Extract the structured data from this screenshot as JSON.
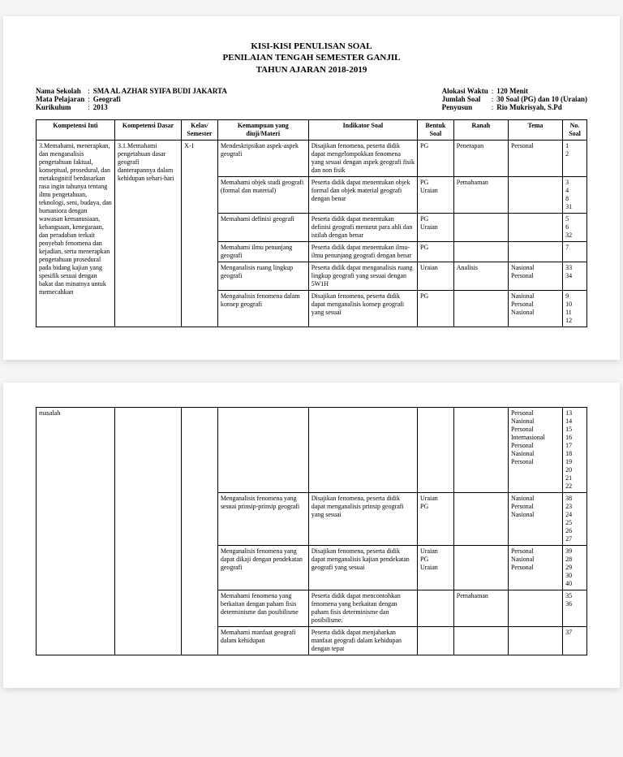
{
  "title": {
    "l1": "KISI-KISI PENULISAN SOAL",
    "l2": "PENILAIAN TENGAH SEMESTER GANJIL",
    "l3": "TAHUN AJARAN 2018-2019"
  },
  "meta": {
    "left": [
      {
        "label": "Nama Sekolah",
        "value": "SMA AL AZHAR SYIFA BUDI JAKARTA"
      },
      {
        "label": "Mata Pelajaran",
        "value": "Geografi"
      },
      {
        "label": "Kurikulum",
        "value": "2013"
      }
    ],
    "right": [
      {
        "label": "Alokasi Waktu",
        "value": "120 Menit"
      },
      {
        "label": "Jumlah Soal",
        "value": "30 Soal (PG) dan 10 (Uraian)"
      },
      {
        "label": "Penyusun",
        "value": "Rio Mukrisyah, S.Pd"
      }
    ]
  },
  "columns": [
    "Kompetensi Inti",
    "Kompetensi Dasar",
    "Kelas/ Semester",
    "Kemampuan yang diuji/Materi",
    "Indikator Soal",
    "Bentuk Soal",
    "Ranah",
    "Tema",
    "No. Soal"
  ],
  "page1": {
    "ki": "3.Memahami, menerapkan, dan menganalisis pengetahuan faktual, konseptual, prosedural, dan metakognitif berdasarkan rasa ingin tahunya tentang ilmu pengetahuan, teknologi, seni, budaya, dan humaniora dengan wawasan kemanusiaan, kebangsaan, kenegaraan, dan peradaban terkait penyebab fenomena dan kejadian, serta menerapkan pengetahuan prosedural pada bidang kajian yang spesifik sesuai dengan bakat dan minatnya untuk memecahkan",
    "kd": "3.1.Memahami pengetahuan dasar geografi danterapannya dalam kehidupan sehari-hari",
    "ks": "X-1",
    "rows": [
      {
        "km": "Mendeskripsikan aspek-aspek geografi",
        "is": "Disajikan fenomena, peserta didik dapat mengelompokkan fenomena yang sesuai dengan aspek geografi fisik dan non fisik",
        "bs": "PG",
        "rn": "Penerapan",
        "tm": "Personal",
        "no": [
          "1",
          "2"
        ]
      },
      {
        "km": "Memahami objek studi geografi (formal dan material)",
        "is": "Peserta didik dapat menentukan objek formal dan objek material geografi dengan benar",
        "bs": "PG\nUraian",
        "rn": "Pemahaman",
        "tm": "",
        "no": [
          "3",
          "4",
          "8",
          "31"
        ]
      },
      {
        "km": "Memahami definisi geografi",
        "is": "Peserta didik dapat menentukan definisi geografi menurut para ahli dan istilah dengan benar",
        "bs": "PG\nUraian",
        "rn": "",
        "tm": "",
        "no": [
          "5",
          "6",
          "32"
        ]
      },
      {
        "km": "Memahami ilmu penunjang geografi",
        "is": "Peserta didik dapat menentukan ilmu-ilmu penunjang geografi dengan benar",
        "bs": "PG",
        "rn": "",
        "tm": "",
        "no": [
          "7"
        ]
      },
      {
        "km": "Menganalisis ruang lingkup geografi",
        "is": "Peserta didik dapat menganalisis ruang lingkup geografi yang sesuai dengan 5W1H",
        "bs": "Uraian",
        "rn": "Analisis",
        "tm": "Nasional\nPersonal",
        "no": [
          "33",
          "34"
        ]
      },
      {
        "km": "Menganalisis fenomena dalam konsep geografi",
        "is": "Disajikan fenomena, peserta didik dapat menganalisis konsep geografi yang sesuai",
        "bs": "PG",
        "rn": "",
        "tm": "Nasional\n\nPersonal\nNasional",
        "no": [
          "9",
          "10",
          "11",
          "12"
        ]
      }
    ]
  },
  "page2": {
    "ki": "masalah",
    "rows": [
      {
        "km": "",
        "is": "",
        "bs": "",
        "rn": "",
        "tm": "Personal\nNasional\n\nPersonal\nInternasional\nPersonal\n\nNasional\n\nPersonal",
        "no": [
          "13",
          "14",
          "15",
          "16",
          "17",
          "18",
          "19",
          "20",
          "21",
          "22"
        ]
      },
      {
        "km": "Menganalisis fenomena yang sesuai prinsip-prinsip geografi",
        "is": "Disajikan fenomena, peserta didik dapat menganalisis prinsip geografi yang sesuai",
        "bs": "Uraian\nPG",
        "rn": "",
        "tm": "\nNasional\n\nPersonal\nNasional",
        "no": [
          "38",
          "23",
          "24",
          "25",
          "26",
          "27"
        ]
      },
      {
        "km": "Menganalisis fenomena yang dapat dikaji dengan pendekatan geografi",
        "is": "Disajikan fenomena, peserta didik dapat menganalisis kajian pendekatan geografi yang sesuai",
        "bs": "Uraian\nPG\n\nUraian",
        "rn": "",
        "tm": "Personal\nNasional\n\nPersonal",
        "no": [
          "39",
          "28",
          "29",
          "30",
          "40"
        ]
      },
      {
        "km": "Memahami fenomena yang berkaitan dengan paham fisis determinisme dan posibilisme",
        "is": "Peserta didik dapat mencontohkan fenomena yang berkaitan dengan paham fisis determinisme dan posibilisme.",
        "bs": "",
        "rn": "Pemahaman",
        "tm": "",
        "no": [
          "35",
          "36"
        ]
      },
      {
        "km": "Memahami manfaat geografi dalam kehidupan",
        "is": "Peserta didik dapat menjabarkan manfaat geografi dalam kehidupan dengan tepat",
        "bs": "",
        "rn": "",
        "tm": "",
        "no": [
          "37"
        ]
      }
    ]
  }
}
